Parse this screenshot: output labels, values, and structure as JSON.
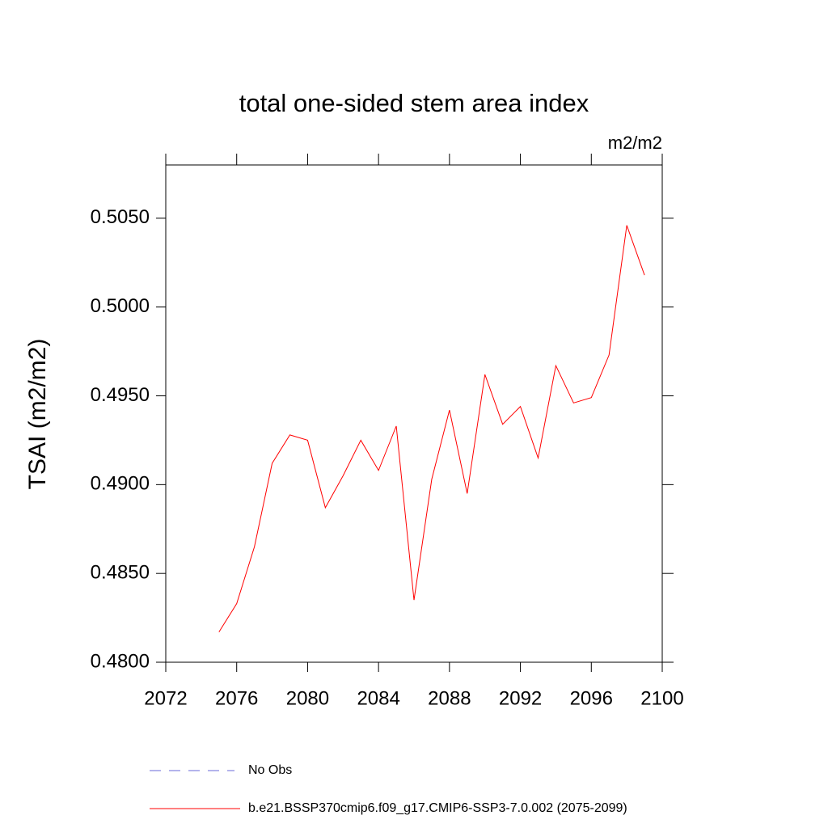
{
  "chart_data": {
    "type": "line",
    "title": "total one-sided stem area index",
    "units": "m2/m2",
    "y_label": "TSAI  (m2/m2)",
    "x": [
      2075,
      2076,
      2077,
      2078,
      2079,
      2080,
      2081,
      2082,
      2083,
      2084,
      2085,
      2086,
      2087,
      2088,
      2089,
      2090,
      2091,
      2092,
      2093,
      2094,
      2095,
      2096,
      2097,
      2098,
      2099
    ],
    "series": [
      {
        "name": "b.e21.BSSP370cmip6.f09_g17.CMIP6-SSP3-7.0.002 (2075-2099)",
        "color": "#ff0000",
        "values": [
          0.4817,
          0.4833,
          0.4865,
          0.4912,
          0.4928,
          0.4925,
          0.4887,
          0.4905,
          0.4925,
          0.4908,
          0.4933,
          0.4835,
          0.4903,
          0.4942,
          0.4895,
          0.4962,
          0.4934,
          0.4944,
          0.4915,
          0.4967,
          0.4946,
          0.4949,
          0.4973,
          0.5046,
          0.5018
        ]
      }
    ],
    "reference": {
      "name": "No Obs",
      "color": "#6a6ad8",
      "style": "dashed"
    },
    "xlim": [
      2072,
      2100
    ],
    "xticks": [
      2072,
      2076,
      2080,
      2084,
      2088,
      2092,
      2096,
      2100
    ],
    "ylim": [
      0.48,
      0.508
    ],
    "yticks": [
      {
        "value": 0.48,
        "label": "0.4800"
      },
      {
        "value": 0.485,
        "label": "0.4850"
      },
      {
        "value": 0.49,
        "label": "0.4900"
      },
      {
        "value": 0.495,
        "label": "0.4950"
      },
      {
        "value": 0.5,
        "label": "0.5000"
      },
      {
        "value": 0.505,
        "label": "0.5050"
      }
    ],
    "grid": false
  }
}
